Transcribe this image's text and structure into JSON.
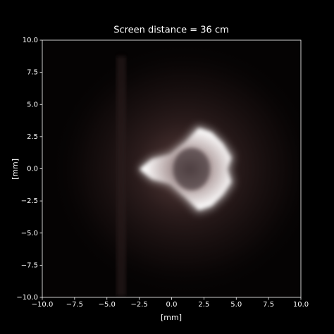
{
  "chart_data": {
    "type": "image",
    "title": "Screen distance = 36 cm",
    "xlabel": "[mm]",
    "ylabel": "[mm]",
    "xlim": [
      -10,
      10
    ],
    "ylim": [
      -10,
      10
    ],
    "xticks": [
      {
        "value": -10,
        "label": "−10.0"
      },
      {
        "value": -7.5,
        "label": "−7.5"
      },
      {
        "value": -5,
        "label": "−5.0"
      },
      {
        "value": -2.5,
        "label": "−2.5"
      },
      {
        "value": 0,
        "label": "0.0"
      },
      {
        "value": 2.5,
        "label": "2.5"
      },
      {
        "value": 5,
        "label": "5.0"
      },
      {
        "value": 7.5,
        "label": "7.5"
      },
      {
        "value": 10,
        "label": "10.0"
      }
    ],
    "yticks": [
      {
        "value": -10,
        "label": "−10.0"
      },
      {
        "value": -7.5,
        "label": "−7.5"
      },
      {
        "value": -5,
        "label": "−5.0"
      },
      {
        "value": -2.5,
        "label": "−2.5"
      },
      {
        "value": 0,
        "label": "0.0"
      },
      {
        "value": 2.5,
        "label": "2.5"
      },
      {
        "value": 5,
        "label": "5.0"
      },
      {
        "value": 7.5,
        "label": "7.5"
      },
      {
        "value": 10,
        "label": "10.0"
      }
    ]
  }
}
